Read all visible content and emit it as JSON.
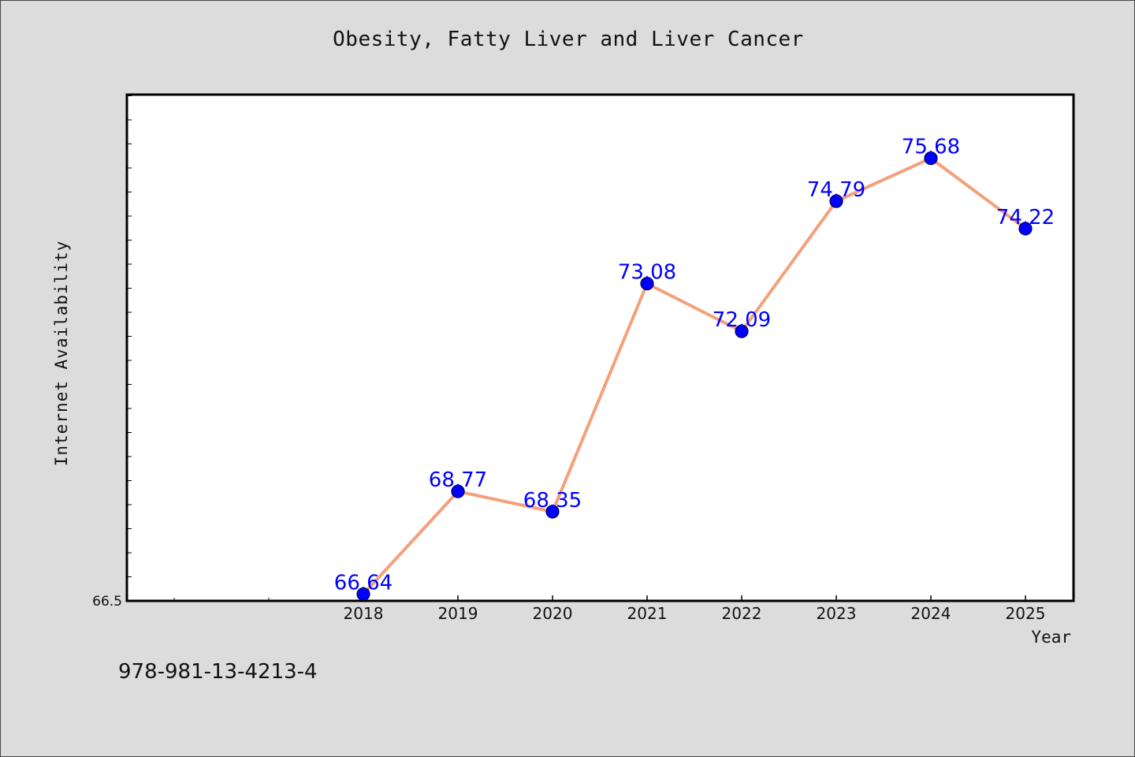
{
  "chart_data": {
    "type": "line",
    "title": "Obesity, Fatty Liver and Liver Cancer",
    "xlabel": "Year",
    "ylabel": "Internet Availability",
    "categories": [
      "2018",
      "2019",
      "2020",
      "2021",
      "2022",
      "2023",
      "2024",
      "2025"
    ],
    "series": [
      {
        "values": [
          66.64,
          68.77,
          68.35,
          73.08,
          72.09,
          74.79,
          75.68,
          74.22
        ],
        "labels": [
          "66.64",
          "68.77",
          "68.35",
          "73.08",
          "72.09",
          "74.79",
          "75.68",
          "74.22"
        ]
      }
    ],
    "ytick_labels": [
      "66.5"
    ],
    "ylim": [
      66.5,
      77.0
    ],
    "grid": false,
    "legend": "none",
    "colors": {
      "line": "#f4a07a",
      "marker": "#0000ff",
      "data_label": "#0000ff",
      "plot_background": "#ffffff",
      "figure_background": "#dcdcdc"
    }
  },
  "annotation": {
    "text": "978-981-13-4213-4"
  }
}
